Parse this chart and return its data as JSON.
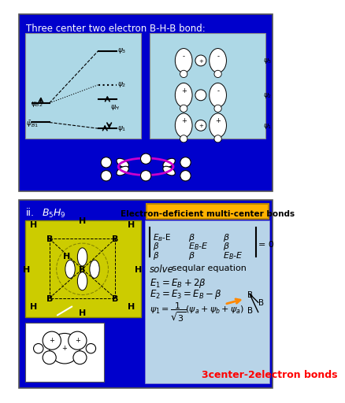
{
  "panel1_title": "Three center two electron B-H-B bond:",
  "panel1_bg": "#0000CC",
  "panel1_inner_bg": "#ADD8E6",
  "panel2_bg": "#0000CC",
  "panel2_box_text": "Electron-deficient multi-center bonds",
  "panel2_box_bg": "#FFB300",
  "panel2_light_bg": "#B8D4E8",
  "yellow_bg": "#CCCC00",
  "outer_bg": "#FFFFFF",
  "white": "#FFFFFF",
  "black": "#000000",
  "red_text": "3center-2electron bonds",
  "red_color": "#FF0000"
}
